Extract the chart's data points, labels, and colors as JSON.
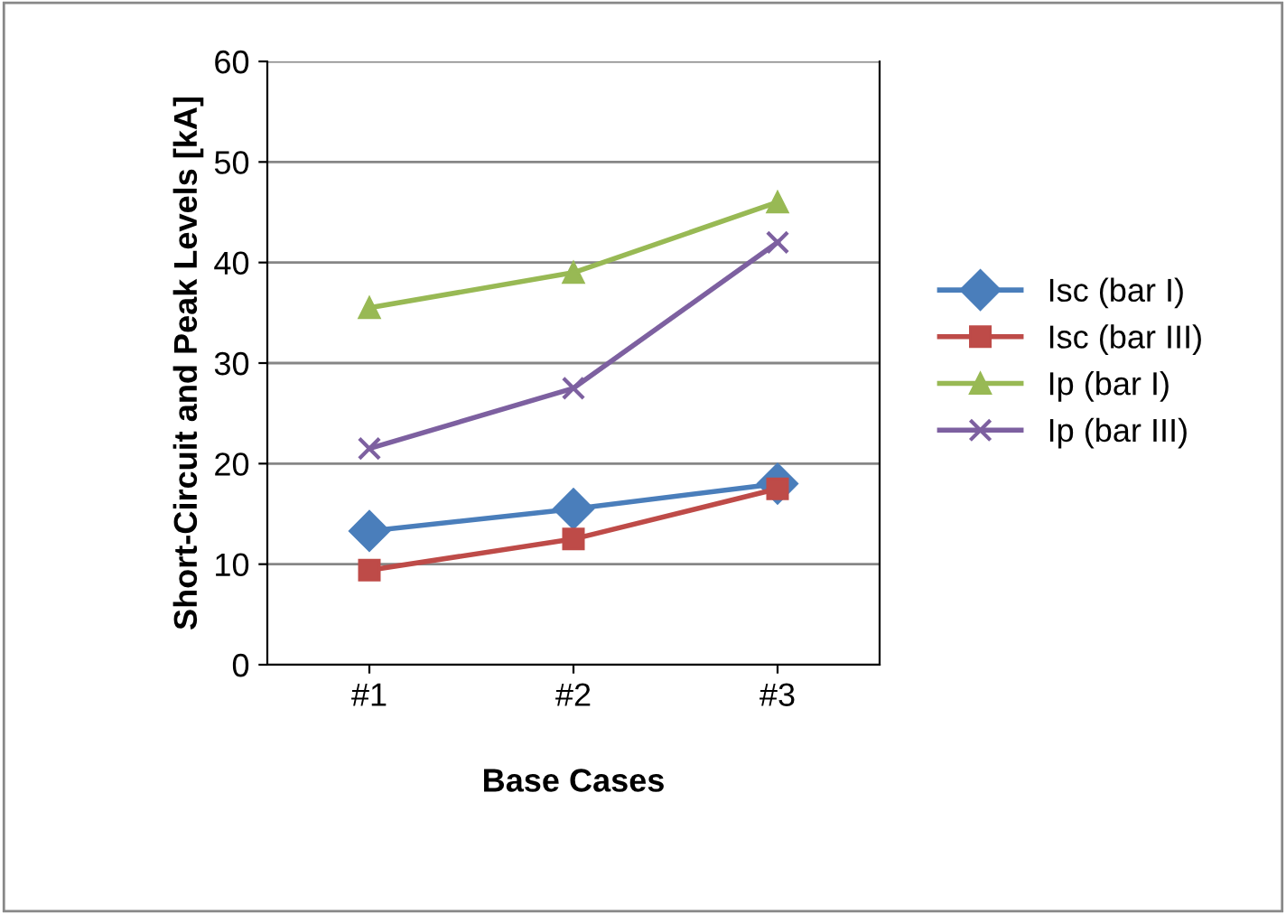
{
  "chart_data": {
    "type": "line",
    "xlabel": "Base Cases",
    "ylabel": "Short-Circuit and Peak Levels [kA]",
    "categories": [
      "#1",
      "#2",
      "#3"
    ],
    "series": [
      {
        "name": "Isc (bar I)",
        "color": "#4a7ebb",
        "marker": "diamond",
        "values": [
          13.3,
          15.5,
          18
        ]
      },
      {
        "name": "Isc (bar III)",
        "color": "#be4b48",
        "marker": "square",
        "values": [
          9.4,
          12.5,
          17.5
        ]
      },
      {
        "name": "Ip (bar I)",
        "color": "#98b954",
        "marker": "triangle",
        "values": [
          35.5,
          39,
          46
        ]
      },
      {
        "name": "Ip (bar III)",
        "color": "#7d60a0",
        "marker": "cross",
        "values": [
          21.5,
          27.5,
          42
        ]
      }
    ],
    "ylim": [
      0,
      60
    ],
    "yticks": [
      0,
      10,
      20,
      30,
      40,
      50,
      60
    ],
    "grid": "y",
    "legend": "right",
    "line_style": "solid"
  }
}
